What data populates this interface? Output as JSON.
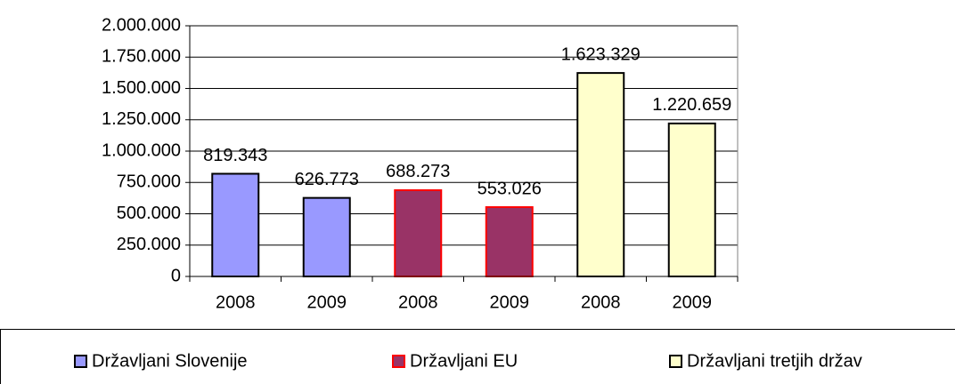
{
  "chart_data": {
    "type": "bar",
    "categories": [
      "2008",
      "2009",
      "2008",
      "2009",
      "2008",
      "2009"
    ],
    "series": [
      {
        "name": "Državljani Slovenije",
        "color": "#9999ff",
        "border": "#000000",
        "values": [
          819343,
          626773,
          null,
          null,
          null,
          null
        ],
        "value_labels": [
          "819.343",
          "626.773",
          null,
          null,
          null,
          null
        ]
      },
      {
        "name": "Državljani EU",
        "color": "#993366",
        "border": "#ff0000",
        "values": [
          null,
          null,
          688273,
          553026,
          null,
          null
        ],
        "value_labels": [
          null,
          null,
          "688.273",
          "553.026",
          null,
          null
        ]
      },
      {
        "name": "Državljani tretjih držav",
        "color": "#ffffcc",
        "border": "#000000",
        "values": [
          null,
          null,
          null,
          null,
          1623329,
          1220659
        ],
        "value_labels": [
          null,
          null,
          null,
          null,
          "1.623.329",
          "1.220.659"
        ]
      }
    ],
    "ylim": [
      0,
      2000000
    ],
    "yticks": [
      0,
      {
        "value": 250000,
        "label": "250.000"
      },
      {
        "value": 500000,
        "label": "500.000"
      },
      {
        "value": 750000,
        "label": "750.000"
      },
      {
        "value": 1000000,
        "label": "1.000.000"
      },
      {
        "value": 1250000,
        "label": "1.250.000"
      },
      {
        "value": 1500000,
        "label": "1.500.000"
      },
      {
        "value": 1750000,
        "label": "1.750.000"
      },
      {
        "value": 2000000,
        "label": "2.000.000"
      }
    ],
    "grid": true,
    "legend": "bottom"
  }
}
